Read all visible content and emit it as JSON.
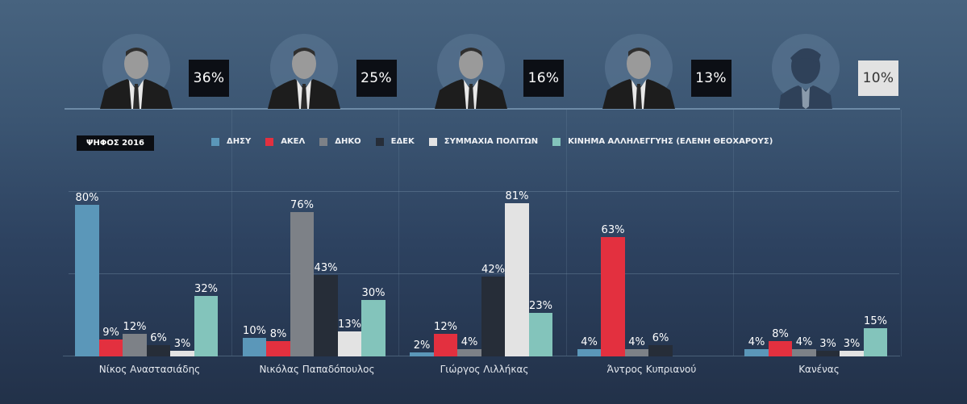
{
  "header": {
    "candidates": [
      {
        "name": "Νίκος Αναστασιάδης",
        "pct": "36%",
        "photo": "portrait",
        "box": "dark"
      },
      {
        "name": "Νικόλας Παπαδόπουλος",
        "pct": "25%",
        "photo": "portrait",
        "box": "dark"
      },
      {
        "name": "Γιώργος Λιλλήκας",
        "pct": "16%",
        "photo": "portrait",
        "box": "dark"
      },
      {
        "name": "Άντρος Κυπριανού",
        "pct": "13%",
        "photo": "portrait",
        "box": "dark"
      },
      {
        "name": "Κανένας",
        "pct": "10%",
        "photo": "silhouette-icon",
        "box": "light"
      }
    ]
  },
  "badge": {
    "label": "ΨΗΦΟΣ 2016"
  },
  "colors": {
    "ΔΗΣΥ": "#5b97b9",
    "ΑΚΕΛ": "#e3303f",
    "ΔΗΚΟ": "#7d8187",
    "ΕΔΕΚ": "#262d38",
    "ΣΥΜΜΑΧΙΑ ΠΟΛΙΤΩΝ": "#e3e3e3",
    "ΚΙΝΗΜΑ ΑΛΛΗΛΕΓΓΥΗΣ (ΕΛΕΝΗ ΘΕΟΧΑΡΟΥΣ)": "#83c4bb"
  },
  "chart_data": {
    "type": "bar",
    "title": "ΨΗΦΟΣ 2016",
    "xlabel": "",
    "ylabel": "",
    "ylim": [
      0,
      100
    ],
    "grid": true,
    "legend_position": "top",
    "categories": [
      "Νίκος Αναστασιάδης",
      "Νικόλας Παπαδόπουλος",
      "Γιώργος Λιλλήκας",
      "Άντρος Κυπριανού",
      "Κανένας"
    ],
    "series": [
      {
        "name": "ΔΗΣΥ",
        "color": "#5b97b9",
        "values": [
          80,
          10,
          2,
          4,
          4
        ]
      },
      {
        "name": "ΑΚΕΛ",
        "color": "#e3303f",
        "values": [
          9,
          8,
          12,
          63,
          8
        ]
      },
      {
        "name": "ΔΗΚΟ",
        "color": "#7d8187",
        "values": [
          12,
          76,
          4,
          4,
          4
        ]
      },
      {
        "name": "ΕΔΕΚ",
        "color": "#262d38",
        "values": [
          6,
          43,
          42,
          6,
          3
        ]
      },
      {
        "name": "ΣΥΜΜΑΧΙΑ ΠΟΛΙΤΩΝ",
        "color": "#e3e3e3",
        "values": [
          3,
          13,
          81,
          null,
          3
        ]
      },
      {
        "name": "ΚΙΝΗΜΑ ΑΛΛΗΛΕΓΓΥΗΣ (ΕΛΕΝΗ ΘΕΟΧΑΡΟΥΣ)",
        "color": "#83c4bb",
        "values": [
          32,
          30,
          23,
          null,
          15
        ]
      }
    ],
    "candidate_totals": {
      "Νίκος Αναστασιάδης": 36,
      "Νικόλας Παπαδόπουλος": 25,
      "Γιώργος Λιλλήκας": 16,
      "Άντρος Κυπριανού": 13,
      "Κανένας": 10
    }
  }
}
